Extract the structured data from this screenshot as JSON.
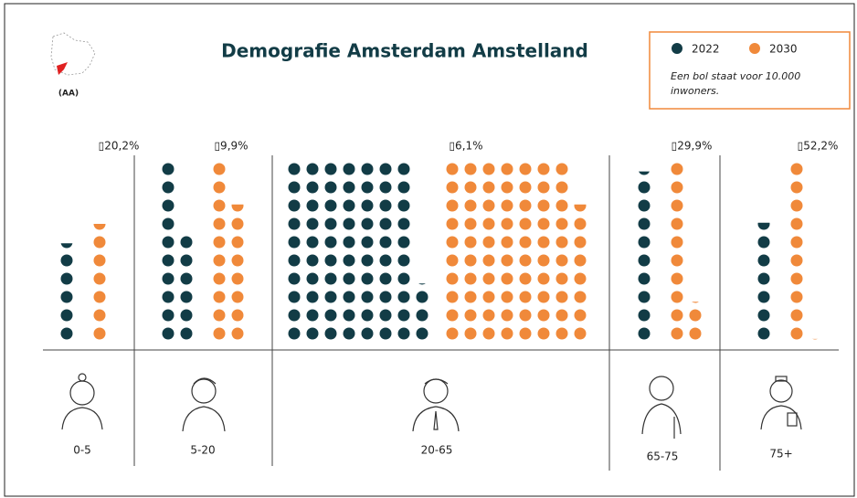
{
  "chart_data": {
    "type": "dot-matrix",
    "title": "Demografie Amsterdam Amstelland",
    "logo_label": "(AA)",
    "legend_note": [
      "Een bol staat voor  10.000",
      "inwoners."
    ],
    "categories": [
      "0-5",
      "5-20",
      "20-65",
      "65-75",
      "75+"
    ],
    "change_labels": [
      "▯20,2%",
      "▯9,9%",
      "▯6,1%",
      "▯29,9%",
      "▯52,2%"
    ],
    "series": [
      {
        "name": "2022",
        "color": "#123c46",
        "values": [
          5.4,
          16.0,
          73.1,
          9.3,
          6.6
        ]
      },
      {
        "name": "2030",
        "color": "#f0893a",
        "values": [
          6.5,
          17.6,
          77.6,
          12.1,
          10.05
        ]
      }
    ]
  }
}
